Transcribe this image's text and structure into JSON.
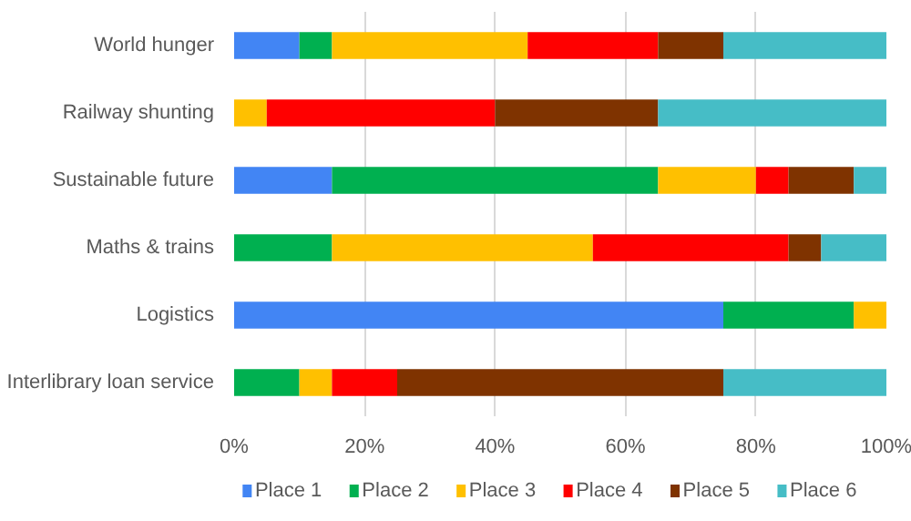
{
  "chart_data": {
    "type": "bar",
    "orientation": "horizontal",
    "stacked": true,
    "categories": [
      "World hunger",
      "Railway shunting",
      "Sustainable future",
      "Maths & trains",
      "Logistics",
      "Interlibrary loan service"
    ],
    "series": [
      {
        "name": "Place 1",
        "color": "#4285f4",
        "values": [
          10,
          0,
          15,
          0,
          75,
          0
        ]
      },
      {
        "name": "Place 2",
        "color": "#00b050",
        "values": [
          5,
          0,
          50,
          15,
          20,
          10
        ]
      },
      {
        "name": "Place 3",
        "color": "#ffc000",
        "values": [
          30,
          5,
          15,
          40,
          5,
          5
        ]
      },
      {
        "name": "Place 4",
        "color": "#ff0000",
        "values": [
          20,
          35,
          5,
          30,
          0,
          10
        ]
      },
      {
        "name": "Place 5",
        "color": "#7f3300",
        "values": [
          10,
          25,
          10,
          5,
          0,
          50
        ]
      },
      {
        "name": "Place 6",
        "color": "#46bdc6",
        "values": [
          25,
          35,
          5,
          10,
          0,
          25
        ]
      }
    ],
    "xlim": [
      0,
      100
    ],
    "xticks": [
      {
        "value": 0,
        "label": "0%"
      },
      {
        "value": 20,
        "label": "20%"
      },
      {
        "value": 40,
        "label": "40%"
      },
      {
        "value": 60,
        "label": "60%"
      },
      {
        "value": 80,
        "label": "80%"
      },
      {
        "value": 100,
        "label": "100%"
      }
    ],
    "grid": "x",
    "legend": "bottom"
  }
}
